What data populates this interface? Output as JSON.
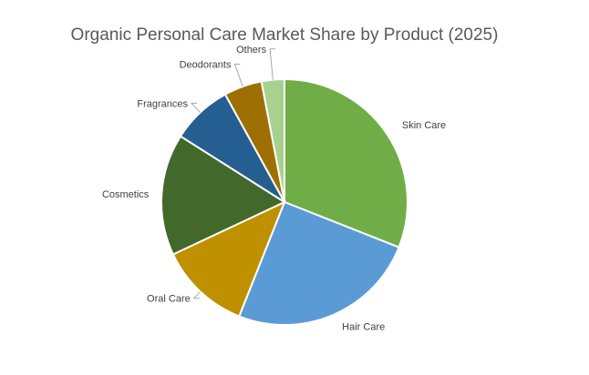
{
  "chart_data": {
    "type": "pie",
    "title": "Organic Personal Care Market Share by Product (2025)",
    "start_angle_deg": 0,
    "direction": "clockwise",
    "legend": "none",
    "slices": [
      {
        "label": "Skin Care",
        "value": 31,
        "color": "#70ad47"
      },
      {
        "label": "Hair Care",
        "value": 25,
        "color": "#5b9bd5"
      },
      {
        "label": "Oral Care",
        "value": 12,
        "color": "#bf9000"
      },
      {
        "label": "Cosmetics",
        "value": 16,
        "color": "#43682b"
      },
      {
        "label": "Fragrances",
        "value": 8,
        "color": "#255e91"
      },
      {
        "label": "Deodorants",
        "value": 5,
        "color": "#9e7003"
      },
      {
        "label": "Others",
        "value": 3,
        "color": "#a9d18e"
      }
    ]
  }
}
